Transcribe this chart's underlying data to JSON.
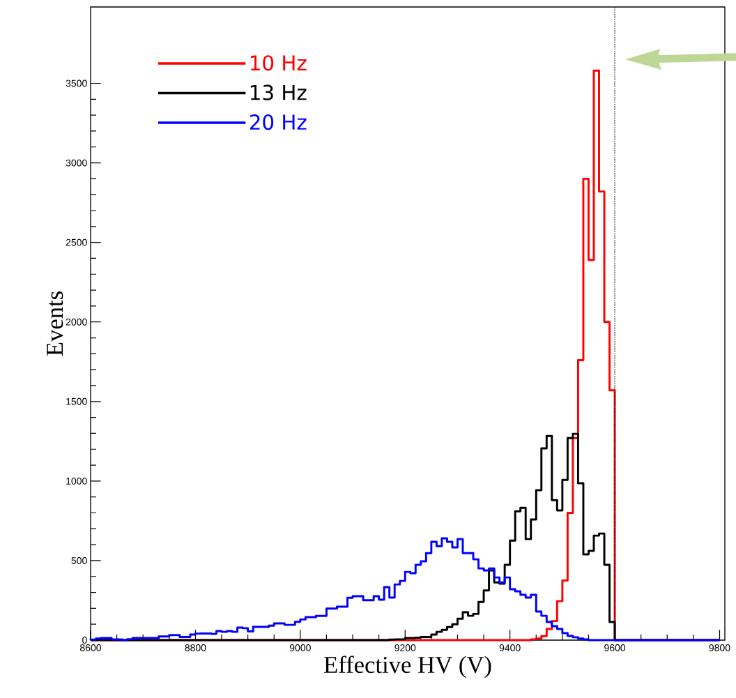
{
  "chart_data": {
    "type": "histogram",
    "xlabel": "Effective HV (V)",
    "ylabel": "Events",
    "bins": [
      8600,
      8610,
      8620,
      8630,
      8640,
      8650,
      8660,
      8670,
      8680,
      8690,
      8700,
      8710,
      8720,
      8730,
      8740,
      8750,
      8760,
      8770,
      8780,
      8790,
      8800,
      8810,
      8820,
      8830,
      8840,
      8850,
      8860,
      8870,
      8880,
      8890,
      8900,
      8910,
      8920,
      8930,
      8940,
      8950,
      8960,
      8970,
      8980,
      8990,
      9000,
      9010,
      9020,
      9030,
      9040,
      9050,
      9060,
      9070,
      9080,
      9090,
      9100,
      9110,
      9120,
      9130,
      9140,
      9150,
      9160,
      9170,
      9180,
      9190,
      9200,
      9210,
      9220,
      9230,
      9240,
      9250,
      9260,
      9270,
      9280,
      9290,
      9300,
      9310,
      9320,
      9330,
      9340,
      9350,
      9360,
      9370,
      9380,
      9390,
      9400,
      9410,
      9420,
      9430,
      9440,
      9450,
      9460,
      9470,
      9480,
      9490,
      9500,
      9510,
      9520,
      9530,
      9540,
      9550,
      9560,
      9570,
      9580,
      9590,
      9600,
      9610,
      9620,
      9630,
      9640,
      9650,
      9660,
      9670,
      9680,
      9690,
      9700,
      9710,
      9720,
      9730,
      9740,
      9750,
      9760,
      9770,
      9780,
      9790,
      9800
    ],
    "series": [
      {
        "name": "10 Hz",
        "color": "#ff0000",
        "values": [
          0,
          0,
          0,
          0,
          0,
          0,
          0,
          0,
          0,
          0,
          0,
          0,
          0,
          0,
          0,
          0,
          0,
          0,
          0,
          0,
          0,
          0,
          0,
          0,
          0,
          0,
          0,
          0,
          0,
          0,
          0,
          0,
          0,
          0,
          0,
          0,
          0,
          0,
          0,
          0,
          0,
          0,
          0,
          0,
          0,
          0,
          0,
          0,
          0,
          0,
          0,
          0,
          0,
          0,
          0,
          0,
          0,
          0,
          0,
          0,
          0,
          0,
          0,
          0,
          0,
          0,
          0,
          0,
          0,
          0,
          0,
          0,
          0,
          0,
          0,
          0,
          0,
          0,
          0,
          0,
          0,
          0,
          0,
          0,
          5,
          10,
          25,
          70,
          120,
          245,
          375,
          800,
          1270,
          1760,
          2900,
          2390,
          3580,
          2820,
          2000,
          1570,
          0,
          0,
          0,
          0,
          0,
          0,
          0,
          0,
          0,
          0,
          0,
          0,
          0,
          0,
          0,
          0,
          0,
          0,
          0,
          0
        ]
      },
      {
        "name": "13 Hz",
        "color": "#000000",
        "values": [
          0,
          0,
          0,
          0,
          0,
          0,
          0,
          0,
          0,
          0,
          0,
          0,
          0,
          0,
          0,
          0,
          0,
          0,
          0,
          0,
          0,
          0,
          0,
          0,
          0,
          0,
          0,
          0,
          0,
          0,
          0,
          0,
          0,
          0,
          0,
          0,
          0,
          0,
          0,
          0,
          0,
          0,
          0,
          0,
          0,
          0,
          0,
          0,
          0,
          0,
          0,
          0,
          0,
          0,
          0,
          0,
          0,
          3,
          5,
          5,
          13,
          13,
          15,
          20,
          20,
          35,
          52,
          65,
          82,
          100,
          135,
          175,
          153,
          165,
          240,
          312,
          438,
          363,
          355,
          473,
          626,
          810,
          832,
          635,
          758,
          942,
          1205,
          1283,
          880,
          815,
          1007,
          1270,
          1297,
          986,
          539,
          561,
          657,
          670,
          473,
          114,
          0,
          0,
          0,
          0,
          0,
          0,
          0,
          0,
          0,
          0,
          0,
          0,
          0,
          0,
          0,
          0,
          0,
          0,
          0,
          0
        ]
      },
      {
        "name": "20 Hz",
        "color": "#0000ff",
        "values": [
          3,
          10,
          13,
          13,
          4,
          4,
          0,
          6,
          13,
          13,
          13,
          13,
          13,
          23,
          23,
          32,
          32,
          20,
          20,
          35,
          41,
          42,
          42,
          39,
          57,
          52,
          57,
          52,
          79,
          75,
          55,
          83,
          83,
          83,
          91,
          105,
          105,
          96,
          96,
          115,
          130,
          145,
          145,
          152,
          152,
          198,
          198,
          210,
          210,
          266,
          276,
          276,
          251,
          251,
          276,
          254,
          333,
          267,
          350,
          372,
          429,
          421,
          473,
          495,
          547,
          618,
          591,
          640,
          618,
          583,
          635,
          547,
          547,
          508,
          451,
          438,
          451,
          394,
          363,
          394,
          320,
          307,
          285,
          267,
          285,
          180,
          153,
          114,
          88,
          70,
          44,
          26,
          18,
          10,
          4,
          0,
          0,
          0,
          0,
          0,
          0,
          0,
          0,
          0,
          0,
          0,
          0,
          0,
          0,
          0,
          0,
          0,
          0,
          0,
          0,
          0,
          0,
          0,
          0,
          0
        ]
      }
    ],
    "xlim": [
      8600,
      9810
    ],
    "ylim": [
      0,
      3980
    ],
    "xticks": [
      8600,
      8800,
      9000,
      9200,
      9400,
      9600,
      9800
    ],
    "yticks": [
      0,
      500,
      1000,
      1500,
      2000,
      2500,
      3000,
      3500
    ],
    "ref_lines": [
      {
        "axis": "x",
        "value": 9600,
        "color": "#000000",
        "line_style": "dotted"
      }
    ],
    "legend": "top left",
    "grid": false
  }
}
